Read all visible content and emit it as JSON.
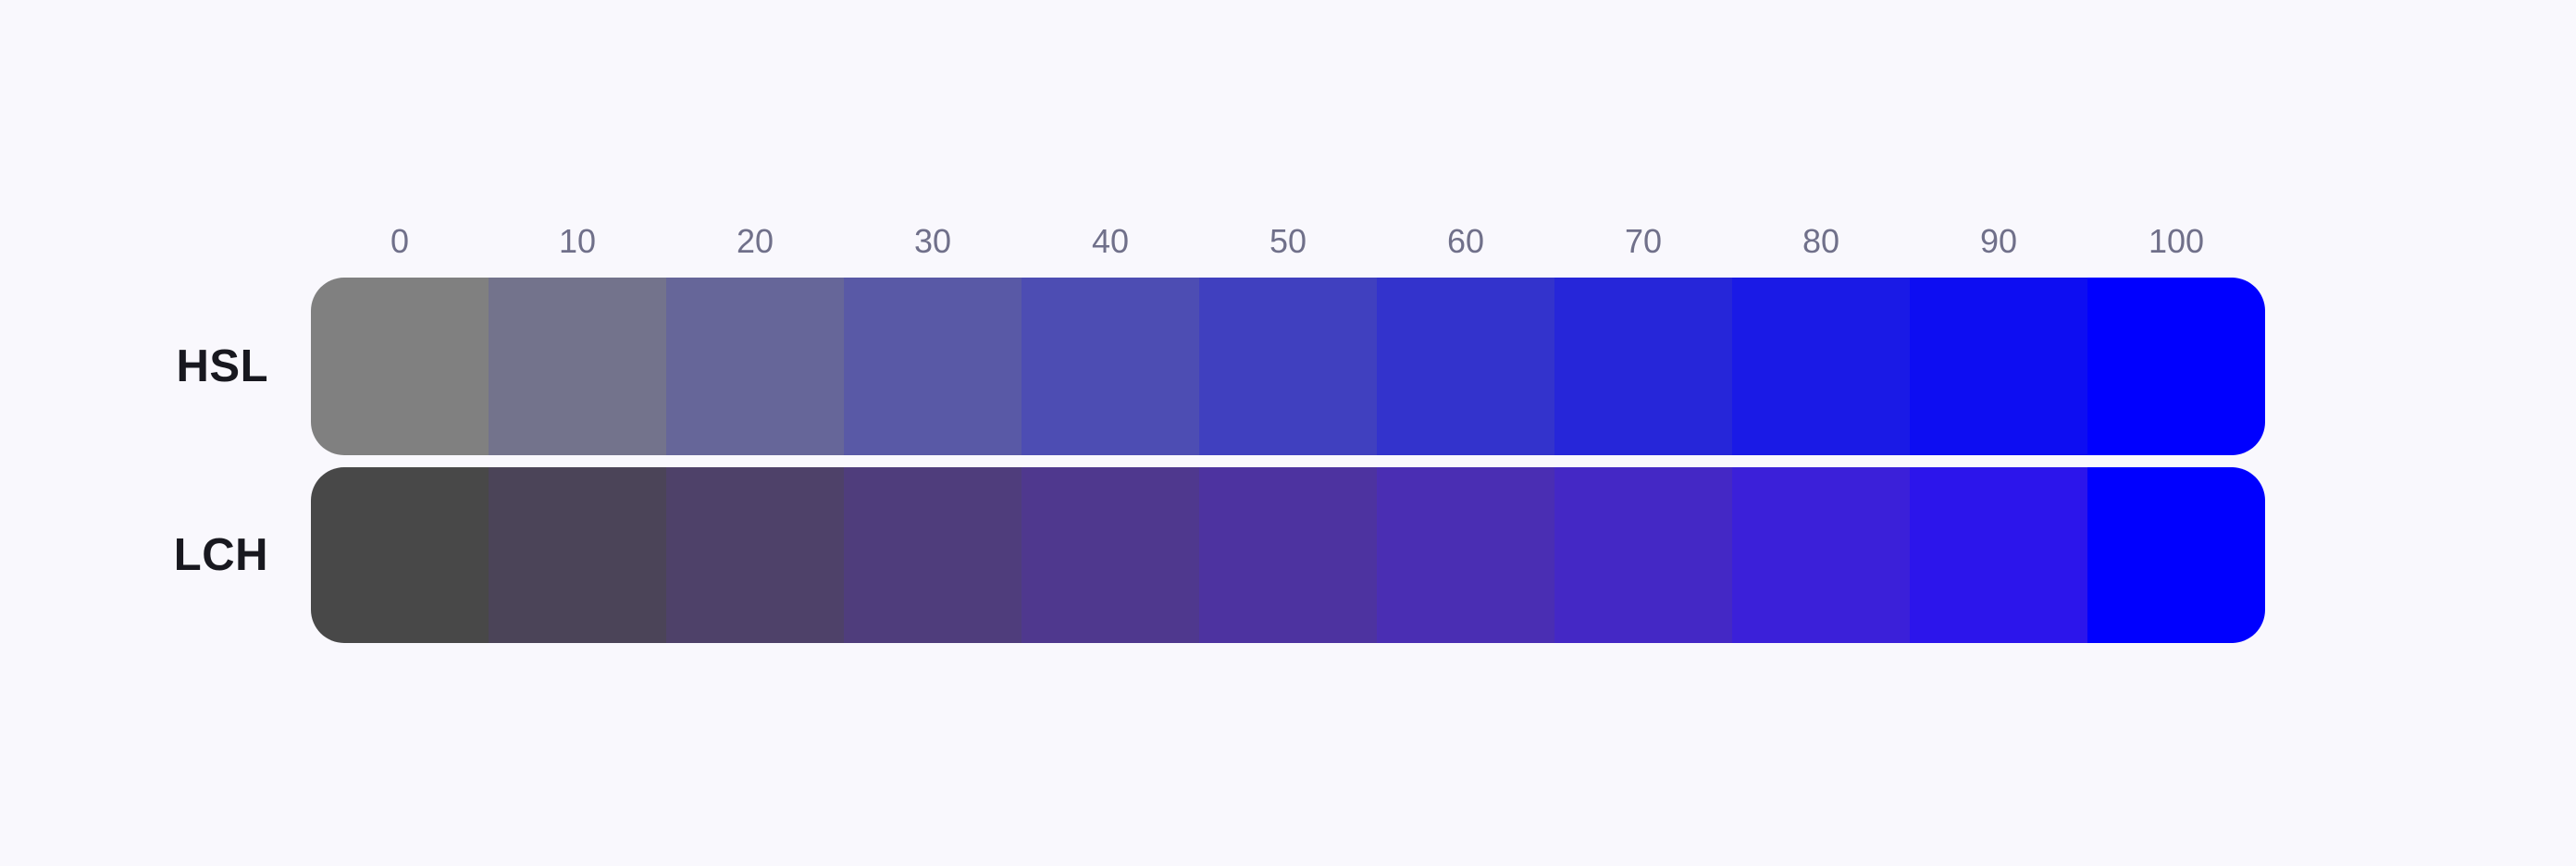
{
  "page": {
    "background": "#F9F8FD",
    "tick_label_color": "#70708A",
    "row_label_color": "#18181F",
    "endpoint_blue": "#0000FF",
    "hsl_start_gray": "#808080",
    "lch_start_gray": "#484848"
  },
  "chart_data": {
    "type": "heatmap",
    "title": "",
    "xlabel": "",
    "ylabel": "",
    "x_ticks": [
      "0",
      "10",
      "20",
      "30",
      "40",
      "50",
      "60",
      "70",
      "80",
      "90",
      "100"
    ],
    "x_range": [
      0,
      100
    ],
    "x_step": 10,
    "grid": false,
    "legend_position": "left-row-labels",
    "rows": [
      "HSL",
      "LCH"
    ],
    "series": [
      {
        "name": "HSL",
        "values": [
          0,
          10,
          20,
          30,
          40,
          50,
          60,
          70,
          80,
          90,
          100
        ],
        "colors": [
          "#808080",
          "#73738C",
          "#666699",
          "#5959A6",
          "#4D4DB3",
          "#4040BF",
          "#3333CC",
          "#2626D9",
          "#1A1AE6",
          "#0D0DF2",
          "#0000FF"
        ]
      },
      {
        "name": "LCH",
        "values": [
          0,
          10,
          20,
          30,
          40,
          50,
          60,
          70,
          80,
          90,
          100
        ],
        "colors": [
          "#484848",
          "#4B4458",
          "#4E4169",
          "#4F3D7C",
          "#4F388E",
          "#4D33A0",
          "#4A2EB3",
          "#4428C5",
          "#3B20D9",
          "#2C15EB",
          "#0000FF"
        ]
      }
    ]
  }
}
